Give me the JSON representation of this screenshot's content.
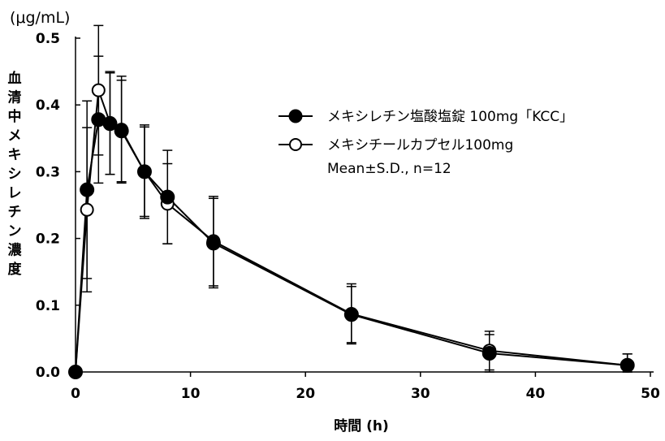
{
  "chart_data": {
    "type": "line",
    "title": "",
    "unit_label": "(μg/mL)",
    "xlabel": "時間 (h)",
    "ylabel": "血清中メキシレチン濃度",
    "xlim": [
      0,
      50
    ],
    "ylim": [
      0,
      0.5
    ],
    "x_ticks": [
      0,
      10,
      20,
      30,
      40,
      50
    ],
    "y_ticks": [
      0.0,
      0.1,
      0.2,
      0.3,
      0.4,
      0.5
    ],
    "x_tick_labels": [
      "0",
      "10",
      "20",
      "30",
      "40",
      "50"
    ],
    "y_tick_labels": [
      "0.0",
      "0.1",
      "0.2",
      "0.3",
      "0.4",
      "0.5"
    ],
    "grid": false,
    "legend_position": "top-right",
    "series": [
      {
        "name": "メキシレチン塩酸塩錠 100mg「KCC」",
        "marker": "filled-circle",
        "x": [
          0,
          1,
          2,
          3,
          4,
          6,
          8,
          12,
          24,
          36,
          48
        ],
        "values": [
          0.0,
          0.273,
          0.378,
          0.372,
          0.361,
          0.3,
          0.262,
          0.193,
          0.086,
          0.028,
          0.01
        ],
        "sd": [
          0.0,
          0.133,
          0.095,
          0.076,
          0.076,
          0.067,
          0.07,
          0.067,
          0.042,
          0.028,
          0.017
        ]
      },
      {
        "name": "メキシチールカプセル100mg",
        "marker": "open-circle",
        "x": [
          0,
          1,
          2,
          3,
          4,
          6,
          8,
          12,
          24,
          36,
          48
        ],
        "values": [
          0.0,
          0.243,
          0.422,
          0.373,
          0.363,
          0.3,
          0.252,
          0.196,
          0.087,
          0.032,
          0.01
        ],
        "sd": [
          0.0,
          0.123,
          0.097,
          0.077,
          0.08,
          0.07,
          0.06,
          0.067,
          0.045,
          0.029,
          0.017
        ]
      }
    ],
    "legend_note": "Mean±S.D., n=12"
  }
}
